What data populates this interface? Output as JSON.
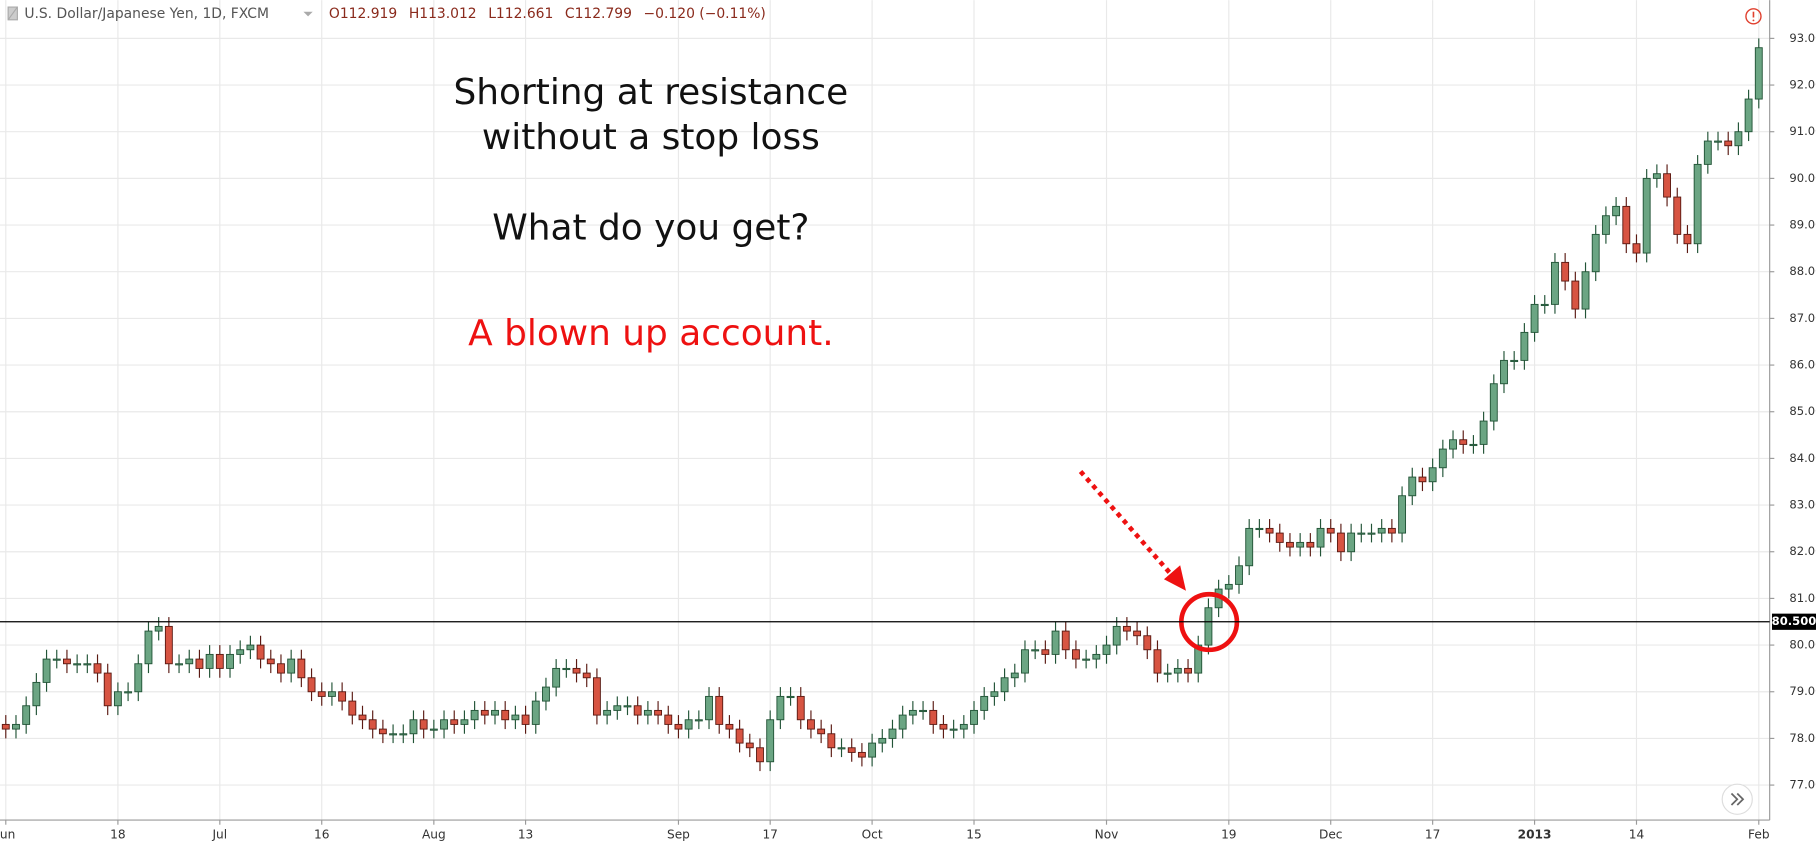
{
  "chart_data": {
    "type": "candlestick",
    "title": "U.S. Dollar/Japanese Yen, 1D, FXCM",
    "readout": [
      "O112.919",
      "H113.012",
      "L112.661",
      "C112.799",
      "−0.120 (−0.11%)"
    ],
    "annotations": [
      "Shorting at resistance",
      "without a stop loss",
      "What do you get?",
      "A blown up account."
    ],
    "up_color": "#6ba583",
    "down_color": "#d75442",
    "grid": true,
    "categories": [
      "Jun",
      null,
      null,
      null,
      null,
      null,
      null,
      null,
      null,
      null,
      null,
      "18",
      null,
      null,
      null,
      null,
      null,
      null,
      null,
      null,
      null,
      "Jul",
      null,
      null,
      null,
      null,
      null,
      null,
      null,
      null,
      null,
      "16",
      null,
      null,
      null,
      null,
      null,
      null,
      null,
      null,
      null,
      null,
      "Aug",
      null,
      null,
      null,
      null,
      null,
      null,
      null,
      null,
      "13",
      null,
      null,
      null,
      null,
      null,
      null,
      null,
      null,
      null,
      null,
      null,
      null,
      null,
      null,
      "Sep",
      null,
      null,
      null,
      null,
      null,
      null,
      null,
      null,
      "17",
      null,
      null,
      null,
      null,
      null,
      null,
      null,
      null,
      null,
      "Oct",
      null,
      null,
      null,
      null,
      null,
      null,
      null,
      null,
      null,
      "15",
      null,
      null,
      null,
      null,
      null,
      null,
      null,
      null,
      null,
      null,
      null,
      null,
      "Nov",
      null,
      null,
      null,
      null,
      null,
      null,
      null,
      null,
      null,
      null,
      null,
      "19",
      null,
      null,
      null,
      null,
      null,
      null,
      null,
      null,
      null,
      "Dec",
      null,
      null,
      null,
      null,
      null,
      null,
      null,
      null,
      null,
      "17",
      null,
      null,
      null,
      null,
      null,
      null,
      null,
      null,
      null,
      "2013",
      null,
      null,
      null,
      null,
      null,
      null,
      null,
      null,
      null,
      "14",
      null,
      null,
      null,
      null,
      null,
      null,
      null,
      null,
      null,
      null,
      null,
      "Feb"
    ],
    "open": [
      78.3,
      78.2,
      78.3,
      78.7,
      79.2,
      79.7,
      79.7,
      79.6,
      79.6,
      79.6,
      79.4,
      78.7,
      79.0,
      79.0,
      79.6,
      80.3,
      80.4,
      79.6,
      79.6,
      79.7,
      79.5,
      79.8,
      79.5,
      79.8,
      79.9,
      80.0,
      79.7,
      79.6,
      79.4,
      79.7,
      79.3,
      79.0,
      78.9,
      79.0,
      78.8,
      78.5,
      78.4,
      78.2,
      78.1,
      78.1,
      78.1,
      78.4,
      78.2,
      78.2,
      78.4,
      78.3,
      78.4,
      78.6,
      78.5,
      78.6,
      78.4,
      78.5,
      78.3,
      78.8,
      79.1,
      79.5,
      79.5,
      79.4,
      79.3,
      78.5,
      78.6,
      78.7,
      78.7,
      78.5,
      78.6,
      78.5,
      78.3,
      78.2,
      78.4,
      78.4,
      78.9,
      78.3,
      78.2,
      77.9,
      77.8,
      77.5,
      78.4,
      78.9,
      78.9,
      78.4,
      78.2,
      78.1,
      77.8,
      77.8,
      77.7,
      77.6,
      77.9,
      78.0,
      78.2,
      78.5,
      78.6,
      78.6,
      78.3,
      78.2,
      78.2,
      78.3,
      78.6,
      78.9,
      79.0,
      79.3,
      79.4,
      79.9,
      79.9,
      79.8,
      80.3,
      79.9,
      79.7,
      79.7,
      79.8,
      80.0,
      80.4,
      80.3,
      80.2,
      79.9,
      79.4,
      79.4,
      79.5,
      79.4,
      80.0,
      80.8,
      81.2,
      81.3,
      81.7,
      82.5,
      82.5,
      82.4,
      82.2,
      82.1,
      82.2,
      82.1,
      82.5,
      82.4,
      82.0,
      82.4,
      82.4,
      82.4,
      82.5,
      82.4,
      83.2,
      83.6,
      83.5,
      83.8,
      84.2,
      84.4,
      84.3,
      84.3,
      84.8,
      85.6,
      86.1,
      86.1,
      86.7,
      87.3,
      87.3,
      88.2,
      87.8,
      87.2,
      88.0,
      88.8,
      89.2,
      89.4,
      88.6,
      88.4,
      90.0,
      90.1,
      89.6,
      88.8,
      88.6,
      90.3,
      90.8,
      90.8,
      90.7,
      91.0,
      91.7
    ],
    "high": [
      78.5,
      78.5,
      78.9,
      79.4,
      79.9,
      79.9,
      79.9,
      79.8,
      79.8,
      79.8,
      79.6,
      79.2,
      79.2,
      79.8,
      80.5,
      80.6,
      80.6,
      79.8,
      79.9,
      79.9,
      80.0,
      80.0,
      80.0,
      80.1,
      80.2,
      80.2,
      79.9,
      79.8,
      79.9,
      79.9,
      79.5,
      79.2,
      79.2,
      79.2,
      79.0,
      78.7,
      78.6,
      78.4,
      78.3,
      78.3,
      78.6,
      78.6,
      78.4,
      78.6,
      78.6,
      78.6,
      78.8,
      78.8,
      78.8,
      78.8,
      78.7,
      78.7,
      79.0,
      79.3,
      79.7,
      79.7,
      79.7,
      79.6,
      79.5,
      78.8,
      78.9,
      78.9,
      78.9,
      78.8,
      78.8,
      78.7,
      78.5,
      78.6,
      78.6,
      79.1,
      79.1,
      78.5,
      78.4,
      78.1,
      78.0,
      78.6,
      79.1,
      79.1,
      79.1,
      78.6,
      78.4,
      78.3,
      78.0,
      78.0,
      77.9,
      78.1,
      78.2,
      78.4,
      78.7,
      78.8,
      78.8,
      78.8,
      78.5,
      78.4,
      78.5,
      78.8,
      79.1,
      79.2,
      79.5,
      79.6,
      80.1,
      80.1,
      80.1,
      80.5,
      80.5,
      80.1,
      79.9,
      80.0,
      80.2,
      80.6,
      80.6,
      80.5,
      80.4,
      80.1,
      79.6,
      79.7,
      79.7,
      80.2,
      81.0,
      81.4,
      81.5,
      81.9,
      82.7,
      82.7,
      82.7,
      82.6,
      82.4,
      82.4,
      82.4,
      82.7,
      82.7,
      82.6,
      82.6,
      82.6,
      82.6,
      82.7,
      82.7,
      83.4,
      83.8,
      83.8,
      84.0,
      84.4,
      84.6,
      84.6,
      84.5,
      85.0,
      85.8,
      86.3,
      86.3,
      86.9,
      87.5,
      87.5,
      88.4,
      88.4,
      88.0,
      88.2,
      89.0,
      89.4,
      89.6,
      89.6,
      88.8,
      90.2,
      90.3,
      90.3,
      89.8,
      89.0,
      90.5,
      91.0,
      91.0,
      91.0,
      91.2,
      91.9,
      93.0
    ],
    "low": [
      78.0,
      78.0,
      78.1,
      78.5,
      79.0,
      79.5,
      79.4,
      79.4,
      79.4,
      79.2,
      78.5,
      78.5,
      78.8,
      78.8,
      79.4,
      80.1,
      79.4,
      79.4,
      79.4,
      79.3,
      79.3,
      79.3,
      79.3,
      79.6,
      79.7,
      79.5,
      79.4,
      79.2,
      79.2,
      79.1,
      78.8,
      78.7,
      78.7,
      78.6,
      78.3,
      78.2,
      78.0,
      77.9,
      77.9,
      77.9,
      77.9,
      78.0,
      78.0,
      78.0,
      78.1,
      78.1,
      78.2,
      78.3,
      78.3,
      78.2,
      78.2,
      78.1,
      78.1,
      78.6,
      78.9,
      79.3,
      79.2,
      79.1,
      78.3,
      78.3,
      78.4,
      78.5,
      78.3,
      78.3,
      78.3,
      78.1,
      78.0,
      78.0,
      78.2,
      78.2,
      78.1,
      78.0,
      77.7,
      77.6,
      77.3,
      77.3,
      78.2,
      78.7,
      78.2,
      78.0,
      77.9,
      77.6,
      77.6,
      77.5,
      77.4,
      77.4,
      77.7,
      77.8,
      78.0,
      78.3,
      78.4,
      78.1,
      78.0,
      78.0,
      78.0,
      78.1,
      78.4,
      78.7,
      78.8,
      79.1,
      79.2,
      79.7,
      79.6,
      79.6,
      79.7,
      79.5,
      79.5,
      79.5,
      79.6,
      79.8,
      80.1,
      80.0,
      79.7,
      79.2,
      79.2,
      79.2,
      79.2,
      79.2,
      79.8,
      80.6,
      81.0,
      81.1,
      81.5,
      82.3,
      82.2,
      82.0,
      81.9,
      81.9,
      81.9,
      81.9,
      82.2,
      81.8,
      81.8,
      82.2,
      82.2,
      82.2,
      82.2,
      82.2,
      83.0,
      83.3,
      83.3,
      83.6,
      84.0,
      84.1,
      84.1,
      84.1,
      84.6,
      85.4,
      85.9,
      85.9,
      86.5,
      87.1,
      87.1,
      87.6,
      87.0,
      87.0,
      87.8,
      88.6,
      89.0,
      88.4,
      88.2,
      88.2,
      89.8,
      89.4,
      88.6,
      88.4,
      88.4,
      90.1,
      90.6,
      90.5,
      90.5,
      90.8,
      91.5
    ],
    "close": [
      78.2,
      78.3,
      78.7,
      79.2,
      79.7,
      79.7,
      79.6,
      79.6,
      79.6,
      79.4,
      78.7,
      79.0,
      79.0,
      79.6,
      80.3,
      80.4,
      79.6,
      79.6,
      79.7,
      79.5,
      79.8,
      79.5,
      79.8,
      79.9,
      80.0,
      79.7,
      79.6,
      79.4,
      79.7,
      79.3,
      79.0,
      78.9,
      79.0,
      78.8,
      78.5,
      78.4,
      78.2,
      78.1,
      78.1,
      78.1,
      78.4,
      78.2,
      78.2,
      78.4,
      78.3,
      78.4,
      78.6,
      78.5,
      78.6,
      78.4,
      78.5,
      78.3,
      78.8,
      79.1,
      79.5,
      79.5,
      79.4,
      79.3,
      78.5,
      78.6,
      78.7,
      78.7,
      78.5,
      78.6,
      78.5,
      78.3,
      78.2,
      78.4,
      78.4,
      78.9,
      78.3,
      78.2,
      77.9,
      77.8,
      77.5,
      78.4,
      78.9,
      78.9,
      78.4,
      78.2,
      78.1,
      77.8,
      77.8,
      77.7,
      77.6,
      77.9,
      78.0,
      78.2,
      78.5,
      78.6,
      78.6,
      78.3,
      78.2,
      78.2,
      78.3,
      78.6,
      78.9,
      79.0,
      79.3,
      79.4,
      79.9,
      79.9,
      79.8,
      80.3,
      79.9,
      79.7,
      79.7,
      79.8,
      80.0,
      80.4,
      80.3,
      80.2,
      79.9,
      79.4,
      79.4,
      79.5,
      79.4,
      80.0,
      80.8,
      81.2,
      81.3,
      81.7,
      82.5,
      82.5,
      82.4,
      82.2,
      82.1,
      82.2,
      82.1,
      82.5,
      82.4,
      82.0,
      82.4,
      82.4,
      82.4,
      82.5,
      82.4,
      83.2,
      83.6,
      83.5,
      83.8,
      84.2,
      84.4,
      84.3,
      84.3,
      84.8,
      85.6,
      86.1,
      86.1,
      86.7,
      87.3,
      87.3,
      88.2,
      87.8,
      87.2,
      88.0,
      88.8,
      89.2,
      89.4,
      88.6,
      88.4,
      90.0,
      90.1,
      89.6,
      88.8,
      88.6,
      90.3,
      90.8,
      90.8,
      90.7,
      91.0,
      91.7,
      92.8
    ],
    "ylim": [
      76.25,
      93.82
    ],
    "yticks": [
      {
        "value": 77,
        "label": "77.000"
      },
      {
        "value": 78,
        "label": "78.000"
      },
      {
        "value": 79,
        "label": "79.000"
      },
      {
        "value": 80,
        "label": "80.000"
      },
      {
        "value": 81,
        "label": "81.000"
      },
      {
        "value": 82,
        "label": "82.000"
      },
      {
        "value": 83,
        "label": "83.000"
      },
      {
        "value": 84,
        "label": "84.000"
      },
      {
        "value": 85,
        "label": "85.000"
      },
      {
        "value": 86,
        "label": "86.000"
      },
      {
        "value": 87,
        "label": "87.000"
      },
      {
        "value": 88,
        "label": "88.000"
      },
      {
        "value": 89,
        "label": "89.000"
      },
      {
        "value": 90,
        "label": "90.000"
      },
      {
        "value": 91,
        "label": "91.000"
      },
      {
        "value": 92,
        "label": "92.000"
      },
      {
        "value": 93,
        "label": "93.000"
      }
    ],
    "price_line": {
      "value": 80.5,
      "label": "80.500"
    }
  }
}
